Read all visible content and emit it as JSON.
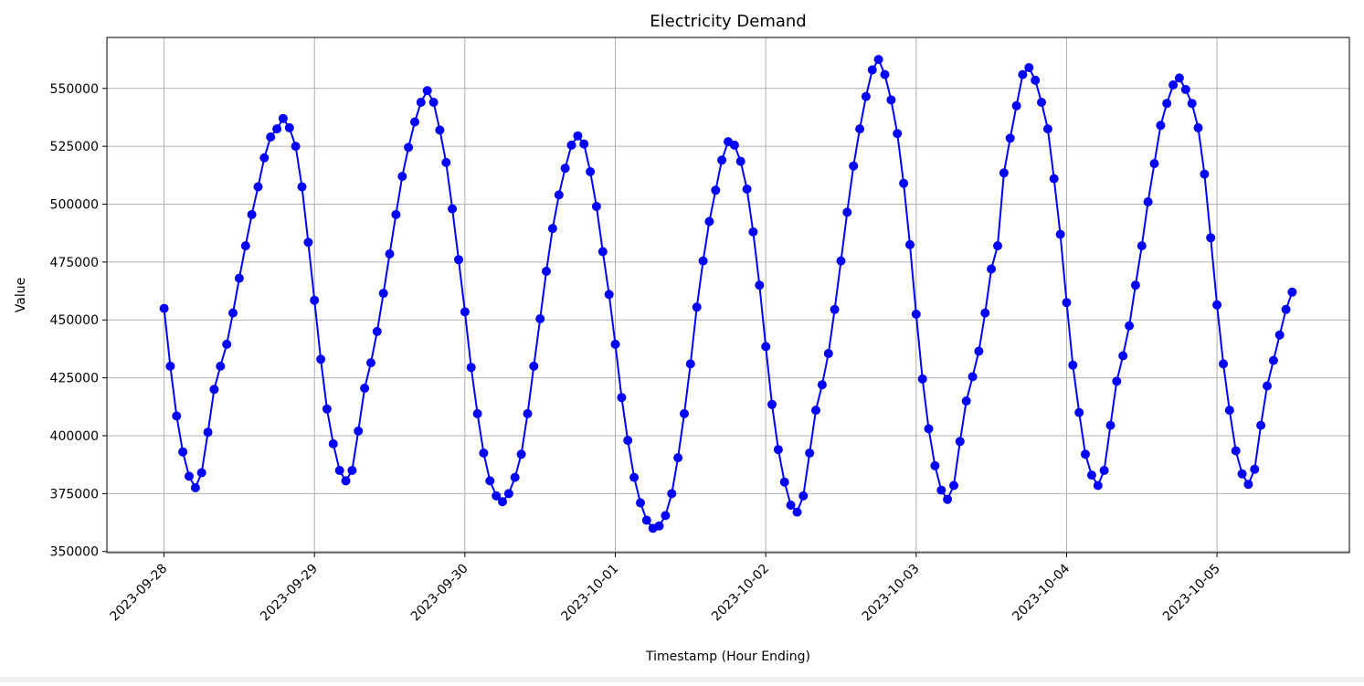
{
  "chart_data": {
    "type": "line",
    "title": "Electricity Demand",
    "xlabel": "Timestamp (Hour Ending)",
    "ylabel": "Value",
    "x_tick_labels": [
      "2023-09-28",
      "2023-09-29",
      "2023-09-30",
      "2023-10-01",
      "2023-10-02",
      "2023-10-03",
      "2023-10-04",
      "2023-10-05"
    ],
    "y_tick_values": [
      350000,
      375000,
      400000,
      425000,
      450000,
      475000,
      500000,
      525000,
      550000
    ],
    "y_tick_labels": [
      "350000",
      "375000",
      "400000",
      "425000",
      "450000",
      "475000",
      "500000",
      "525000",
      "550000"
    ],
    "xlim_days": [
      -0.38,
      7.88
    ],
    "ylim": [
      349500,
      572000
    ],
    "grid": true,
    "series": [
      {
        "name": "Electricity Demand",
        "color": "#0000ff",
        "marker": "circle",
        "sample_interval_hours": 1,
        "start": "2023-09-28T00:00",
        "values": [
          455000,
          430000,
          408500,
          393000,
          382500,
          377500,
          384000,
          401500,
          420000,
          430000,
          439500,
          453000,
          468000,
          482000,
          495500,
          507500,
          520000,
          529000,
          532500,
          537000,
          533000,
          525000,
          507500,
          483500,
          458500,
          433000,
          411500,
          396500,
          385000,
          380500,
          385000,
          402000,
          420500,
          431500,
          445000,
          461500,
          478500,
          495500,
          512000,
          524500,
          535500,
          544000,
          549000,
          544000,
          532000,
          518000,
          498000,
          476000,
          453500,
          429500,
          409500,
          392500,
          380500,
          374000,
          371500,
          375000,
          382000,
          392000,
          409500,
          430000,
          450500,
          471000,
          489500,
          504000,
          515500,
          525500,
          529500,
          526000,
          514000,
          499000,
          479500,
          461000,
          439500,
          416500,
          398000,
          382000,
          371000,
          363500,
          360000,
          361000,
          365500,
          375000,
          390500,
          409500,
          431000,
          455500,
          475500,
          492500,
          506000,
          519000,
          527000,
          525500,
          518500,
          506500,
          488000,
          465000,
          438500,
          413500,
          394000,
          380000,
          370000,
          367000,
          374000,
          392500,
          411000,
          422000,
          435500,
          454500,
          475500,
          496500,
          516500,
          532500,
          546500,
          558000,
          562500,
          556000,
          545000,
          530500,
          509000,
          482500,
          452500,
          424500,
          403000,
          387000,
          376500,
          372500,
          378500,
          397500,
          415000,
          425500,
          436500,
          453000,
          472000,
          482000,
          513500,
          528500,
          542500,
          556000,
          559000,
          553500,
          544000,
          532500,
          511000,
          487000,
          457500,
          430500,
          410000,
          392000,
          383000,
          378500,
          385000,
          404500,
          423500,
          434500,
          447500,
          465000,
          482000,
          501000,
          517500,
          534000,
          543500,
          551500,
          554500,
          549500,
          543500,
          533000,
          513000,
          485500,
          456500,
          431000,
          411000,
          393500,
          383500,
          379000,
          385500,
          404500,
          421500,
          432500,
          443500,
          454500,
          462000
        ]
      }
    ]
  }
}
